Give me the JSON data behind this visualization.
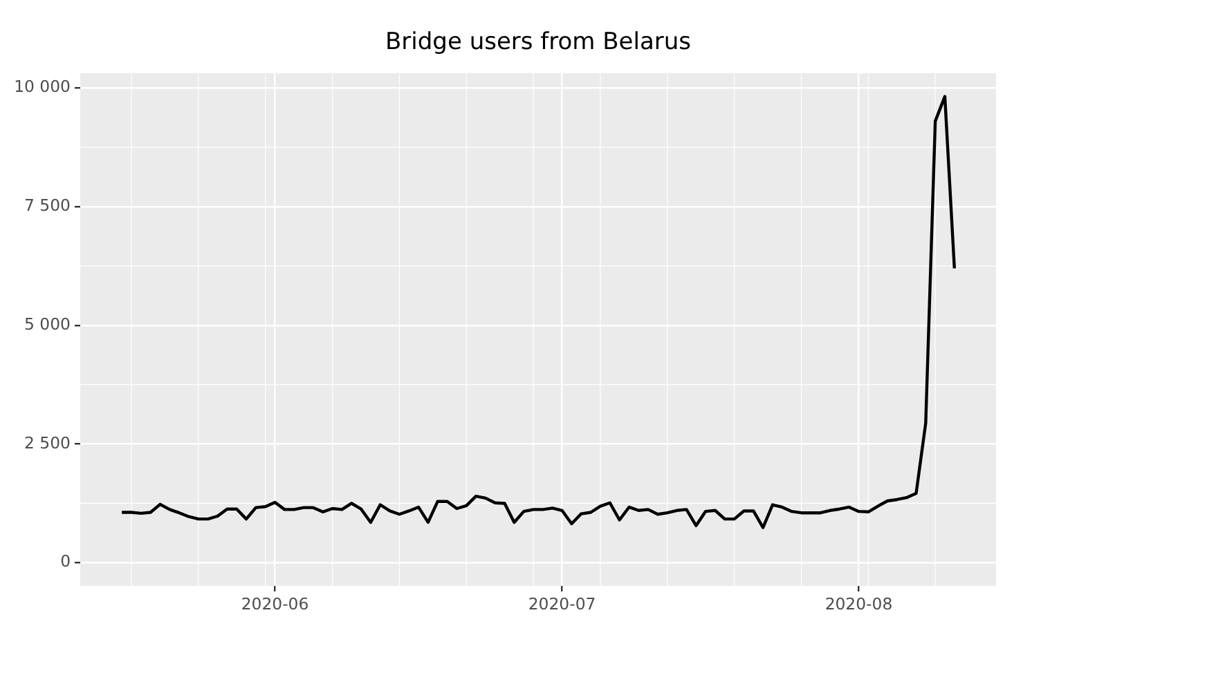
{
  "chart_data": {
    "type": "line",
    "title": "Bridge users from Belarus",
    "x": [
      "2020-05-16",
      "2020-05-17",
      "2020-05-18",
      "2020-05-19",
      "2020-05-20",
      "2020-05-21",
      "2020-05-22",
      "2020-05-23",
      "2020-05-24",
      "2020-05-25",
      "2020-05-26",
      "2020-05-27",
      "2020-05-28",
      "2020-05-29",
      "2020-05-30",
      "2020-05-31",
      "2020-06-01",
      "2020-06-02",
      "2020-06-03",
      "2020-06-04",
      "2020-06-05",
      "2020-06-06",
      "2020-06-07",
      "2020-06-08",
      "2020-06-09",
      "2020-06-10",
      "2020-06-11",
      "2020-06-12",
      "2020-06-13",
      "2020-06-14",
      "2020-06-15",
      "2020-06-16",
      "2020-06-17",
      "2020-06-18",
      "2020-06-19",
      "2020-06-20",
      "2020-06-21",
      "2020-06-22",
      "2020-06-23",
      "2020-06-24",
      "2020-06-25",
      "2020-06-26",
      "2020-06-27",
      "2020-06-28",
      "2020-06-29",
      "2020-06-30",
      "2020-07-01",
      "2020-07-02",
      "2020-07-03",
      "2020-07-04",
      "2020-07-05",
      "2020-07-06",
      "2020-07-07",
      "2020-07-08",
      "2020-07-09",
      "2020-07-10",
      "2020-07-11",
      "2020-07-12",
      "2020-07-13",
      "2020-07-14",
      "2020-07-15",
      "2020-07-16",
      "2020-07-17",
      "2020-07-18",
      "2020-07-19",
      "2020-07-20",
      "2020-07-21",
      "2020-07-22",
      "2020-07-23",
      "2020-07-24",
      "2020-07-25",
      "2020-07-26",
      "2020-07-27",
      "2020-07-28",
      "2020-07-29",
      "2020-07-30",
      "2020-07-31",
      "2020-08-01",
      "2020-08-02",
      "2020-08-03",
      "2020-08-04",
      "2020-08-05",
      "2020-08-06",
      "2020-08-07",
      "2020-08-08",
      "2020-08-09",
      "2020-08-10",
      "2020-08-11"
    ],
    "values": [
      1060,
      1060,
      1040,
      1060,
      1230,
      1120,
      1050,
      970,
      920,
      920,
      980,
      1130,
      1130,
      920,
      1160,
      1180,
      1270,
      1120,
      1120,
      1160,
      1160,
      1070,
      1140,
      1120,
      1250,
      1130,
      850,
      1220,
      1090,
      1020,
      1090,
      1170,
      850,
      1290,
      1290,
      1140,
      1200,
      1400,
      1360,
      1260,
      1250,
      850,
      1080,
      1120,
      1120,
      1150,
      1100,
      820,
      1030,
      1060,
      1190,
      1260,
      900,
      1170,
      1100,
      1120,
      1020,
      1050,
      1100,
      1120,
      780,
      1080,
      1100,
      920,
      920,
      1090,
      1090,
      740,
      1220,
      1170,
      1080,
      1050,
      1050,
      1050,
      1100,
      1130,
      1170,
      1080,
      1070,
      1190,
      1300,
      1330,
      1370,
      1460,
      2940,
      9300,
      9820,
      6200
    ],
    "color": "#000000",
    "xlim": [
      "2020-05-11T15:36",
      "2020-08-15T08:24"
    ],
    "xticks": [
      "2020-06",
      "2020-07",
      "2020-08"
    ],
    "ylim": [
      -490,
      10310
    ],
    "yticks": [
      0,
      {
        "value": 2500,
        "label": "2 500"
      },
      {
        "value": 5000,
        "label": "5 000"
      },
      {
        "value": 7500,
        "label": "7 500"
      },
      {
        "value": 10000,
        "label": "10 000"
      }
    ],
    "grid": true
  }
}
